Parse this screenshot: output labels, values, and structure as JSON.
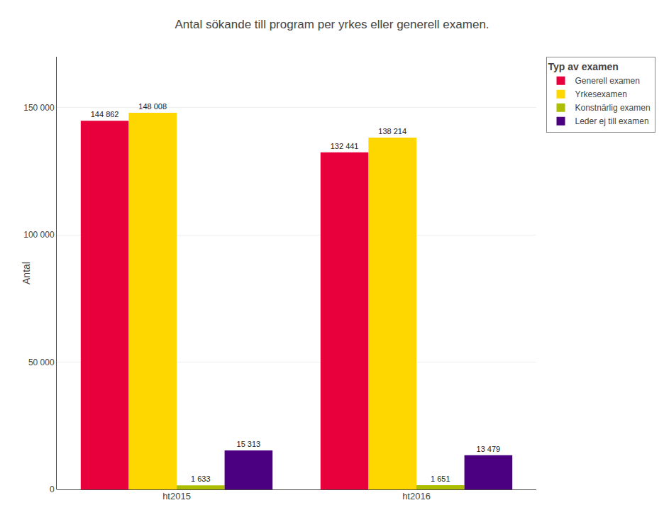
{
  "chart_data": {
    "type": "bar",
    "title": "Antal sökande till program per yrkes eller generell examen.",
    "ylabel": "Antal",
    "categories": [
      "ht2015",
      "ht2016"
    ],
    "series": [
      {
        "name": "Generell examen",
        "color": "#E8003D",
        "values": [
          144862,
          132441
        ],
        "value_labels": [
          "144 862",
          "132 441"
        ]
      },
      {
        "name": "Yrkesexamen",
        "color": "#FFD700",
        "values": [
          148008,
          138214
        ],
        "value_labels": [
          "148 008",
          "138 214"
        ]
      },
      {
        "name": "Konstnärlig examen",
        "color": "#ADBE00",
        "values": [
          1633,
          1651
        ],
        "value_labels": [
          "1 633",
          "1 651"
        ]
      },
      {
        "name": "Leder ej till examen",
        "color": "#4B0082",
        "values": [
          15313,
          13479
        ],
        "value_labels": [
          "15 313",
          "13 479"
        ]
      }
    ],
    "legend_title": "Typ av examen",
    "legend": "upper right",
    "ylim": [
      0,
      170000
    ],
    "yticks": [
      0,
      {
        "value": 50000,
        "label": "50 000"
      },
      {
        "value": 100000,
        "label": "100 000"
      },
      {
        "value": 150000,
        "label": "150 000"
      }
    ],
    "grid": true,
    "data_labels": true
  }
}
